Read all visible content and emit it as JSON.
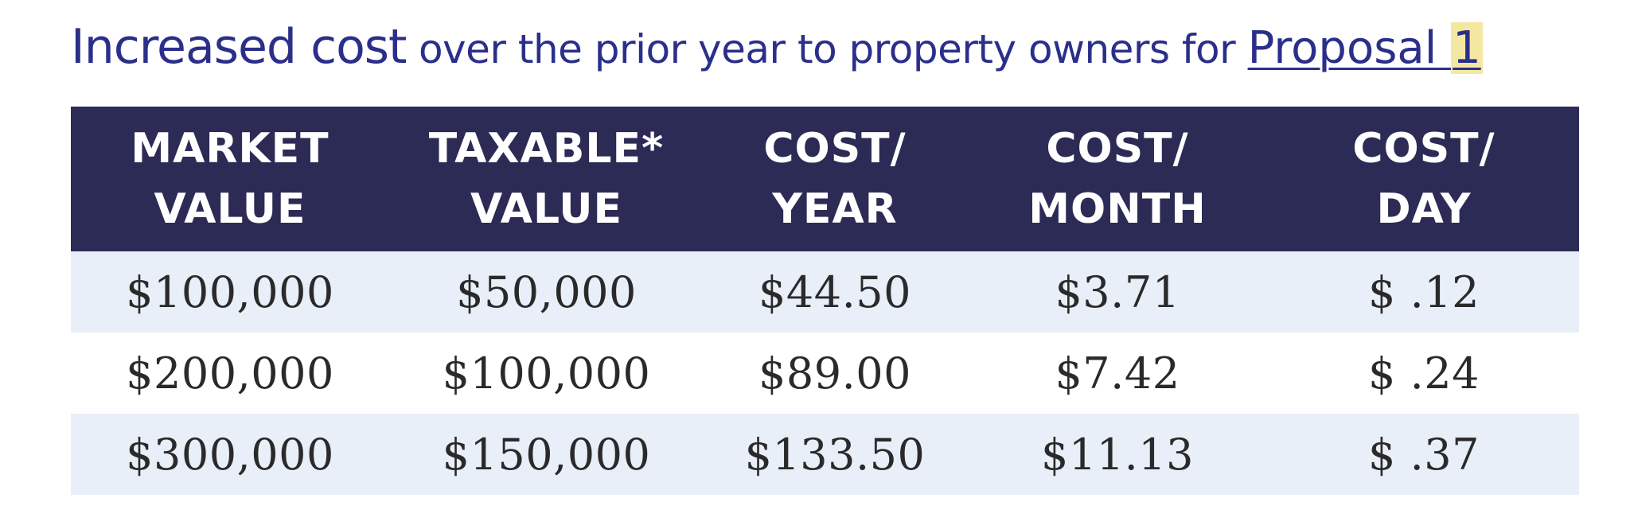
{
  "title": {
    "part1": "Increased cost",
    "part2": " over the prior year to property owners for ",
    "link_text": "Proposal ",
    "link_num": "1"
  },
  "table": {
    "headers": [
      {
        "line1": "MARKET",
        "line2": "VALUE"
      },
      {
        "line1": "TAXABLE*",
        "line2": "VALUE"
      },
      {
        "line1": "COST/",
        "line2": "YEAR"
      },
      {
        "line1": "COST/",
        "line2": "MONTH"
      },
      {
        "line1": "COST/",
        "line2": "DAY"
      }
    ],
    "rows": [
      [
        "$100,000",
        "$50,000",
        "$44.50",
        "$3.71",
        "$ .12"
      ],
      [
        "$200,000",
        "$100,000",
        "$89.00",
        "$7.42",
        "$ .24"
      ],
      [
        "$300,000",
        "$150,000",
        "$133.50",
        "$11.13",
        "$ .37"
      ]
    ]
  },
  "colors": {
    "title": "#2b2f8a",
    "header_bg": "#2c2b56",
    "row_shaded": "#e8eff8",
    "highlight": "#f4e7a2"
  }
}
